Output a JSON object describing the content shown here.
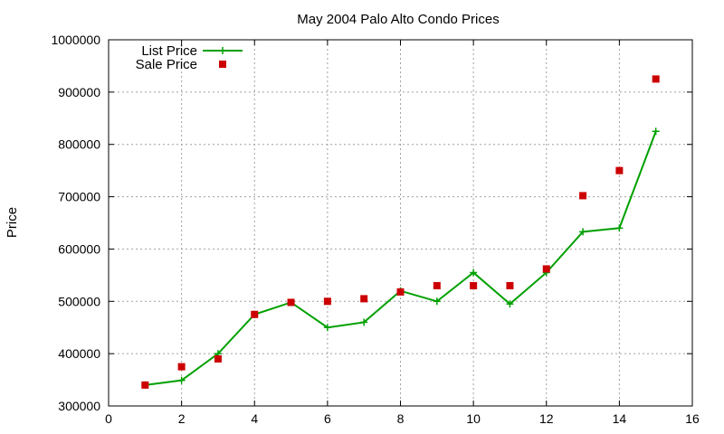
{
  "chart_data": {
    "type": "line",
    "title": "May 2004 Palo Alto Condo Prices",
    "xlabel": "",
    "ylabel": "Price",
    "xlim": [
      0,
      16
    ],
    "ylim": [
      300000,
      1000000
    ],
    "xticks": [
      0,
      2,
      4,
      6,
      8,
      10,
      12,
      14,
      16
    ],
    "yticks": [
      300000,
      400000,
      500000,
      600000,
      700000,
      800000,
      900000,
      1000000
    ],
    "grid": true,
    "legend_position": "top-left",
    "series": [
      {
        "name": "List Price",
        "style": "line+cross",
        "color": "#00a000",
        "x": [
          1,
          2,
          3,
          4,
          5,
          6,
          7,
          8,
          9,
          10,
          11,
          12,
          13,
          14,
          15
        ],
        "values": [
          340000,
          349000,
          400000,
          475000,
          498000,
          450000,
          460000,
          520000,
          500000,
          555000,
          495000,
          555000,
          633000,
          640000,
          825000
        ]
      },
      {
        "name": "Sale Price",
        "style": "square",
        "color": "#cc0000",
        "x": [
          1,
          2,
          3,
          4,
          5,
          6,
          7,
          8,
          9,
          10,
          11,
          12,
          13,
          14,
          15
        ],
        "values": [
          340000,
          375000,
          390000,
          475000,
          498000,
          500000,
          505000,
          518000,
          530000,
          530000,
          530000,
          562000,
          702000,
          750000,
          925000
        ]
      }
    ]
  }
}
